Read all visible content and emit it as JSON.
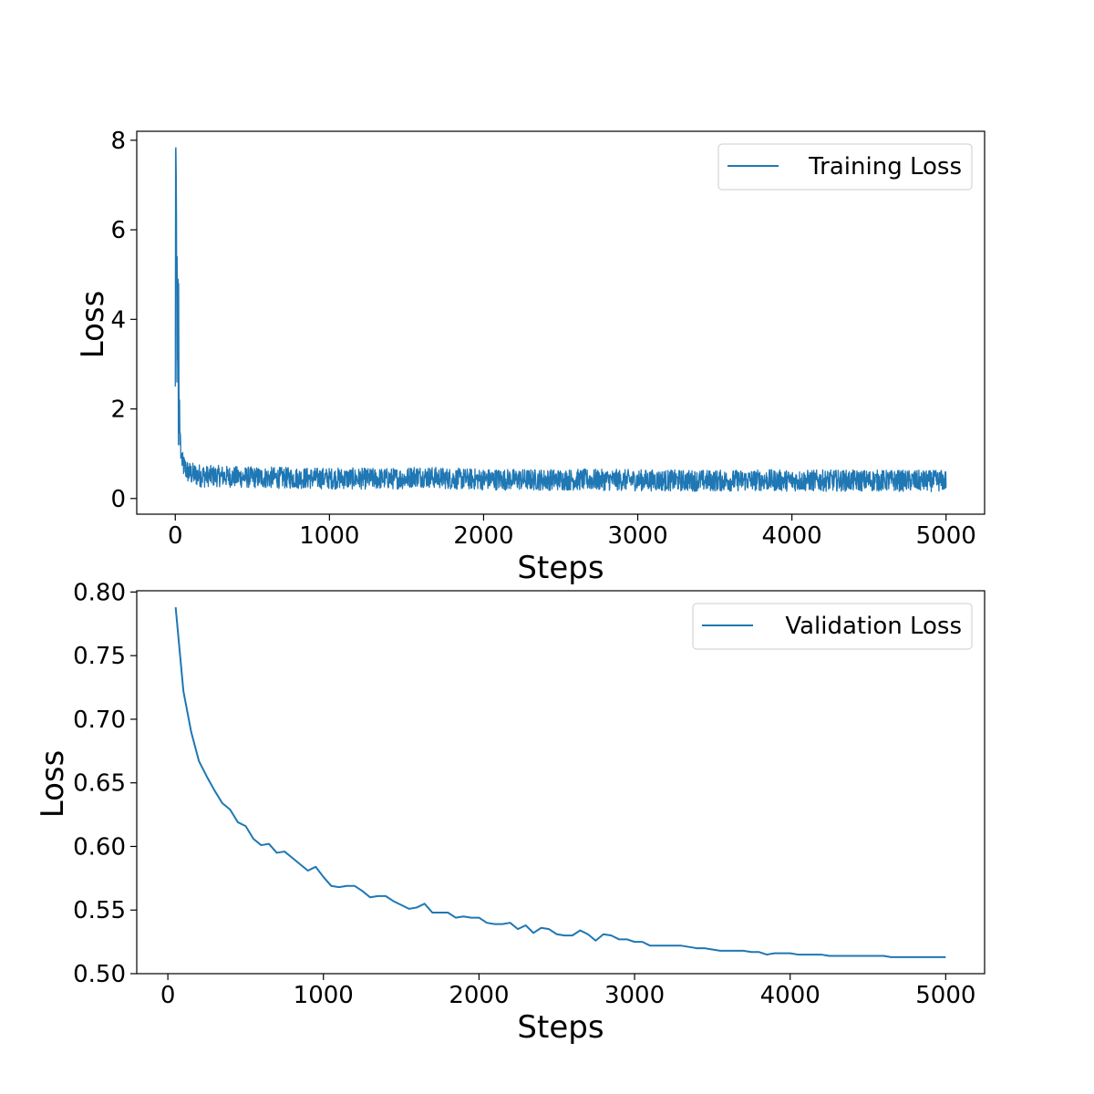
{
  "chart_data": [
    {
      "type": "line",
      "xlabel": "Steps",
      "ylabel": "Loss",
      "xlim": [
        -250,
        5250
      ],
      "ylim": [
        -0.35,
        8.2
      ],
      "x_ticks": [
        0,
        1000,
        2000,
        3000,
        4000,
        5000
      ],
      "x_tick_labels": [
        "0",
        "1000",
        "2000",
        "3000",
        "4000",
        "5000"
      ],
      "y_ticks": [
        0,
        2,
        4,
        6,
        8
      ],
      "y_tick_labels": [
        "0",
        "2",
        "4",
        "6",
        "8"
      ],
      "grid": false,
      "legend_position": "top-right",
      "color": "#1f77b4",
      "series": [
        {
          "name": "Training Loss",
          "x": [
            0,
            2,
            5,
            8,
            10,
            12,
            15,
            18,
            20,
            22,
            25,
            28,
            30,
            33,
            36,
            40,
            45,
            50,
            60,
            70,
            80,
            100,
            150,
            200,
            300,
            400,
            500,
            700,
            1000,
            1300,
            1500,
            1550,
            1800,
            2000,
            2300,
            2600,
            3000,
            3300,
            3600,
            3800,
            4000,
            4300,
            4600,
            4900,
            5000
          ],
          "y": [
            2.5,
            7.8,
            7.85,
            6.2,
            2.6,
            5.4,
            2.2,
            4.9,
            1.2,
            4.8,
            1.1,
            2.2,
            1.2,
            1.6,
            0.9,
            1.0,
            0.8,
            0.75,
            0.7,
            0.65,
            0.6,
            0.55,
            0.52,
            0.5,
            0.5,
            0.48,
            0.47,
            0.46,
            0.45,
            0.44,
            0.45,
            0.5,
            0.44,
            0.43,
            0.42,
            0.42,
            0.41,
            0.4,
            0.4,
            0.41,
            0.4,
            0.4,
            0.4,
            0.39,
            0.4
          ]
        }
      ]
    },
    {
      "type": "line",
      "xlabel": "Steps",
      "ylabel": "Loss",
      "xlim": [
        -200,
        5250
      ],
      "ylim": [
        0.5,
        0.801
      ],
      "x_ticks": [
        0,
        1000,
        2000,
        3000,
        4000,
        5000
      ],
      "x_tick_labels": [
        "0",
        "1000",
        "2000",
        "3000",
        "4000",
        "5000"
      ],
      "y_ticks": [
        0.5,
        0.55,
        0.6,
        0.65,
        0.7,
        0.75,
        0.8
      ],
      "y_tick_labels": [
        "0.50",
        "0.55",
        "0.60",
        "0.65",
        "0.70",
        "0.75",
        "0.80"
      ],
      "grid": false,
      "legend_position": "top-right",
      "color": "#1f77b4",
      "series": [
        {
          "name": "Validation Loss",
          "x": [
            50,
            100,
            150,
            200,
            250,
            300,
            350,
            400,
            450,
            500,
            550,
            600,
            650,
            700,
            750,
            800,
            850,
            900,
            950,
            1000,
            1050,
            1100,
            1150,
            1200,
            1250,
            1300,
            1350,
            1400,
            1450,
            1500,
            1550,
            1600,
            1650,
            1700,
            1750,
            1800,
            1850,
            1900,
            1950,
            2000,
            2050,
            2100,
            2150,
            2200,
            2250,
            2300,
            2350,
            2400,
            2450,
            2500,
            2550,
            2600,
            2650,
            2700,
            2750,
            2800,
            2850,
            2900,
            2950,
            3000,
            3050,
            3100,
            3150,
            3200,
            3250,
            3300,
            3350,
            3400,
            3450,
            3500,
            3550,
            3600,
            3650,
            3700,
            3750,
            3800,
            3850,
            3900,
            3950,
            4000,
            4050,
            4100,
            4150,
            4200,
            4250,
            4300,
            4350,
            4400,
            4450,
            4500,
            4550,
            4600,
            4650,
            4700,
            4750,
            4800,
            4850,
            4900,
            4950,
            5000
          ],
          "y": [
            0.788,
            0.722,
            0.69,
            0.667,
            0.655,
            0.644,
            0.634,
            0.629,
            0.619,
            0.616,
            0.606,
            0.601,
            0.602,
            0.595,
            0.596,
            0.591,
            0.586,
            0.581,
            0.584,
            0.576,
            0.569,
            0.568,
            0.569,
            0.569,
            0.565,
            0.56,
            0.561,
            0.561,
            0.557,
            0.554,
            0.551,
            0.552,
            0.555,
            0.548,
            0.548,
            0.548,
            0.544,
            0.545,
            0.544,
            0.544,
            0.54,
            0.539,
            0.539,
            0.54,
            0.535,
            0.538,
            0.532,
            0.536,
            0.535,
            0.531,
            0.53,
            0.53,
            0.534,
            0.531,
            0.526,
            0.531,
            0.53,
            0.527,
            0.527,
            0.525,
            0.525,
            0.522,
            0.522,
            0.522,
            0.522,
            0.522,
            0.521,
            0.52,
            0.52,
            0.519,
            0.518,
            0.518,
            0.518,
            0.518,
            0.517,
            0.517,
            0.515,
            0.516,
            0.516,
            0.516,
            0.515,
            0.515,
            0.515,
            0.515,
            0.514,
            0.514,
            0.514,
            0.514,
            0.514,
            0.514,
            0.514,
            0.514,
            0.513,
            0.513,
            0.513,
            0.513,
            0.513,
            0.513,
            0.513,
            0.513
          ]
        }
      ]
    }
  ]
}
